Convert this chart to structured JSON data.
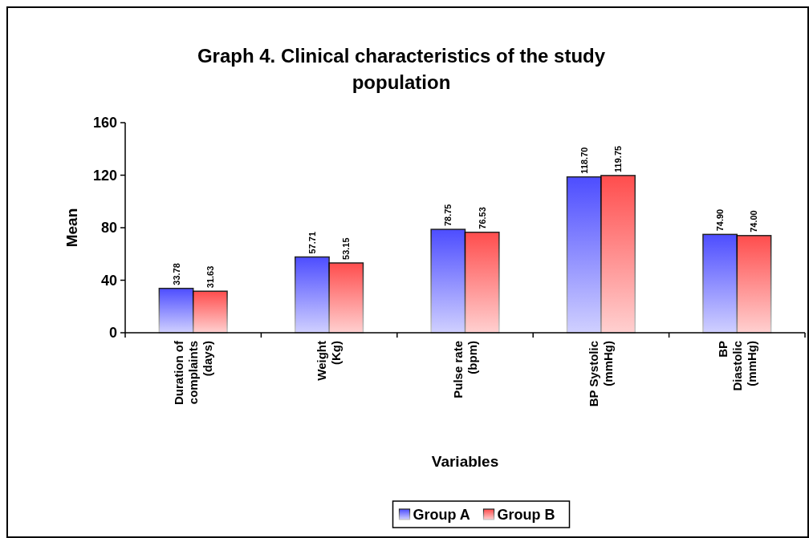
{
  "chart_data": {
    "type": "bar",
    "title": "Graph 4. Clinical characteristics of the study population",
    "xlabel": "Variables",
    "ylabel": "Mean",
    "categories": [
      "Duration of complaints (days)",
      "Weight (Kg)",
      "Pulse rate (bpm)",
      "BP Systolic (mmHg)",
      "BP Diastolic (mmHg)"
    ],
    "series": [
      {
        "name": "Group A",
        "color": "#3333ff",
        "values": [
          33.78,
          57.71,
          78.75,
          118.7,
          74.9
        ]
      },
      {
        "name": "Group B",
        "color": "#ff3333",
        "values": [
          31.63,
          53.15,
          76.53,
          119.75,
          74.0
        ]
      }
    ],
    "value_labels": [
      [
        "33.78",
        "57.71",
        "78.75",
        "118.70",
        "74.90"
      ],
      [
        "31.63",
        "53.15",
        "76.53",
        "119.75",
        "74.00"
      ]
    ],
    "ylim": [
      0,
      160
    ],
    "yticks": [
      0,
      40,
      80,
      120,
      160
    ],
    "grid": false,
    "legend": "bottom"
  }
}
